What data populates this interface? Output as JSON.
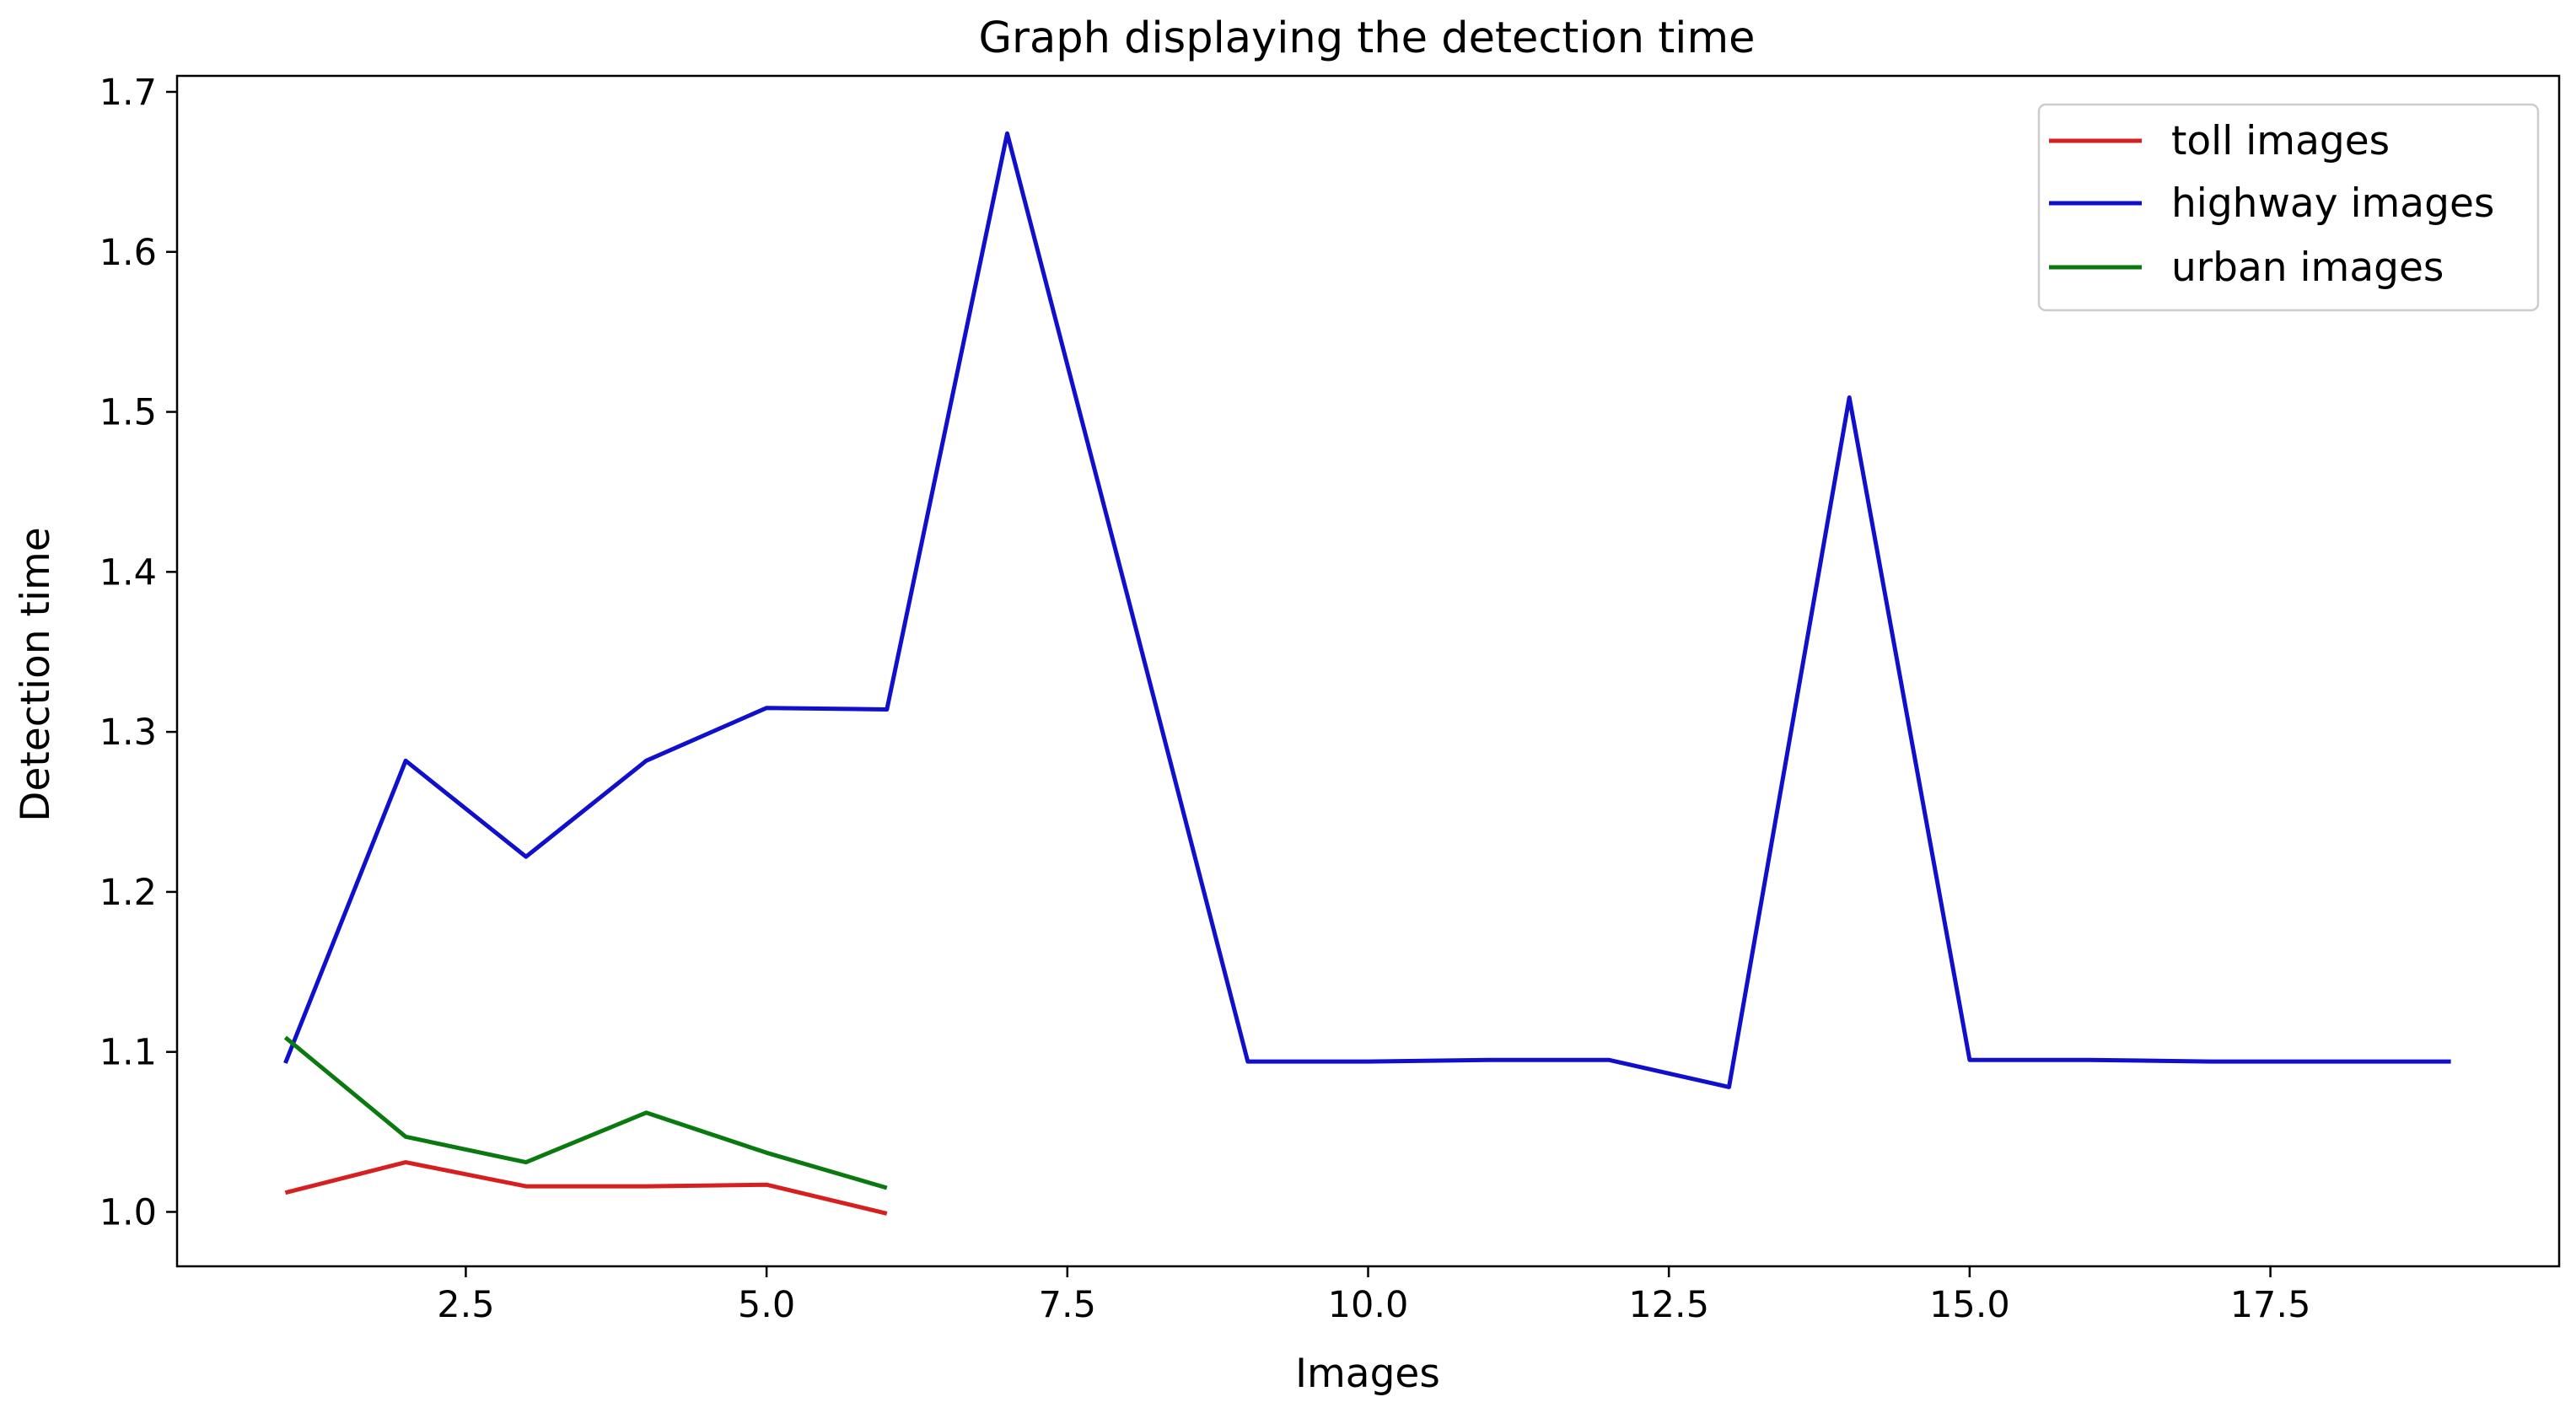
{
  "chart_data": {
    "type": "line",
    "title": "Graph displaying the detection time",
    "xlabel": "Images",
    "ylabel": "Detection time",
    "xlim": [
      0.1,
      19.9
    ],
    "ylim": [
      0.966,
      1.71
    ],
    "xticks": [
      2.5,
      5.0,
      7.5,
      10.0,
      12.5,
      15.0,
      17.5
    ],
    "xtick_labels": [
      "2.5",
      "5.0",
      "7.5",
      "10.0",
      "12.5",
      "15.0",
      "17.5"
    ],
    "yticks": [
      1.0,
      1.1,
      1.2,
      1.3,
      1.4,
      1.5,
      1.6,
      1.7
    ],
    "ytick_labels": [
      "1.0",
      "1.1",
      "1.2",
      "1.3",
      "1.4",
      "1.5",
      "1.6",
      "1.7"
    ],
    "grid": false,
    "legend_position": "top-right",
    "series": [
      {
        "name": "toll images",
        "color": "#d62020",
        "x": [
          1,
          2,
          3,
          4,
          5,
          6
        ],
        "y": [
          1.012,
          1.031,
          1.016,
          1.016,
          1.017,
          0.999
        ]
      },
      {
        "name": "highway images",
        "color": "#1010cc",
        "x": [
          1,
          2,
          3,
          4,
          5,
          6,
          7,
          8,
          9,
          10,
          11,
          12,
          13,
          14,
          15,
          16,
          17,
          18,
          19
        ],
        "y": [
          1.093,
          1.282,
          1.222,
          1.282,
          1.315,
          1.314,
          1.674,
          1.385,
          1.094,
          1.094,
          1.095,
          1.095,
          1.078,
          1.509,
          1.095,
          1.095,
          1.094,
          1.094,
          1.094
        ]
      },
      {
        "name": "urban images",
        "color": "#0a7a10",
        "x": [
          1,
          2,
          3,
          4,
          5,
          6
        ],
        "y": [
          1.109,
          1.047,
          1.031,
          1.062,
          1.037,
          1.015
        ]
      }
    ]
  }
}
